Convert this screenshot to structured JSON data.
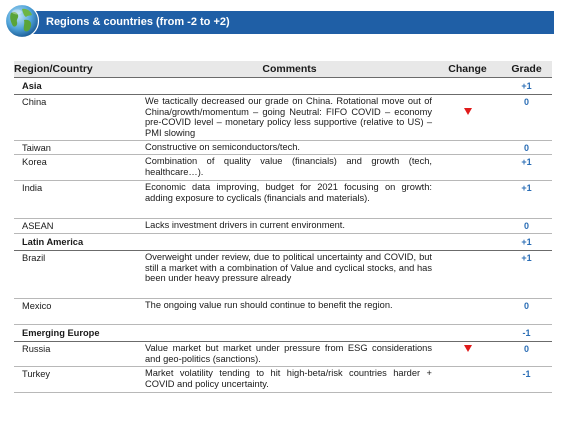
{
  "header": {
    "title": "Regions & countries (from -2 to +2)",
    "bar_color": "#1f5fa6",
    "icon": "globe-icon"
  },
  "table": {
    "columns": [
      "Region/Country",
      "Comments",
      "Change",
      "Grade"
    ],
    "groups": [
      {
        "name": "Asia",
        "grade": "+1",
        "rows": [
          {
            "name": "China",
            "comment": "We tactically decreased our grade on China. Rotational move out of China/growth/momentum – going Neutral: FIFO COVID – economy pre-COVID level – monetary policy less supportive (relative to US) – PMI slowing",
            "change": "down",
            "grade": "0"
          },
          {
            "name": "Taiwan",
            "comment": "Constructive on semiconductors/tech.",
            "change": "",
            "grade": "0"
          },
          {
            "name": "Korea",
            "comment": "Combination of quality value (financials) and growth (tech, healthcare…).",
            "change": "",
            "grade": "+1"
          },
          {
            "name": "India",
            "comment": "Economic data improving, budget for 2021 focusing on growth: adding exposure to cyclicals (financials and materials).",
            "change": "",
            "grade": "+1"
          },
          {
            "name": "ASEAN",
            "comment": "Lacks investment drivers in current environment.",
            "change": "",
            "grade": "0"
          }
        ]
      },
      {
        "name": "Latin America",
        "grade": "+1",
        "rows": [
          {
            "name": "Brazil",
            "comment": "Overweight under review, due to political uncertainty and COVID, but still a market with a combination of Value and cyclical stocks, and has been under heavy pressure already",
            "change": "",
            "grade": "+1"
          },
          {
            "name": "Mexico",
            "comment": "The ongoing value run should continue to benefit the region.",
            "change": "",
            "grade": "0"
          }
        ]
      },
      {
        "name": "Emerging Europe",
        "grade": "-1",
        "rows": [
          {
            "name": "Russia",
            "comment": "Value market but market under pressure from ESG considerations and geo-politics (sanctions).",
            "change": "down",
            "grade": "0"
          },
          {
            "name": "Turkey",
            "comment": "Market volatility tending to hit high-beta/risk countries harder + COVID and policy uncertainty.",
            "change": "",
            "grade": "-1"
          }
        ]
      }
    ]
  },
  "colors": {
    "grade": "#2a6db5",
    "change_down": "#e01b1b",
    "header_row_bg": "#e8e8e8"
  }
}
